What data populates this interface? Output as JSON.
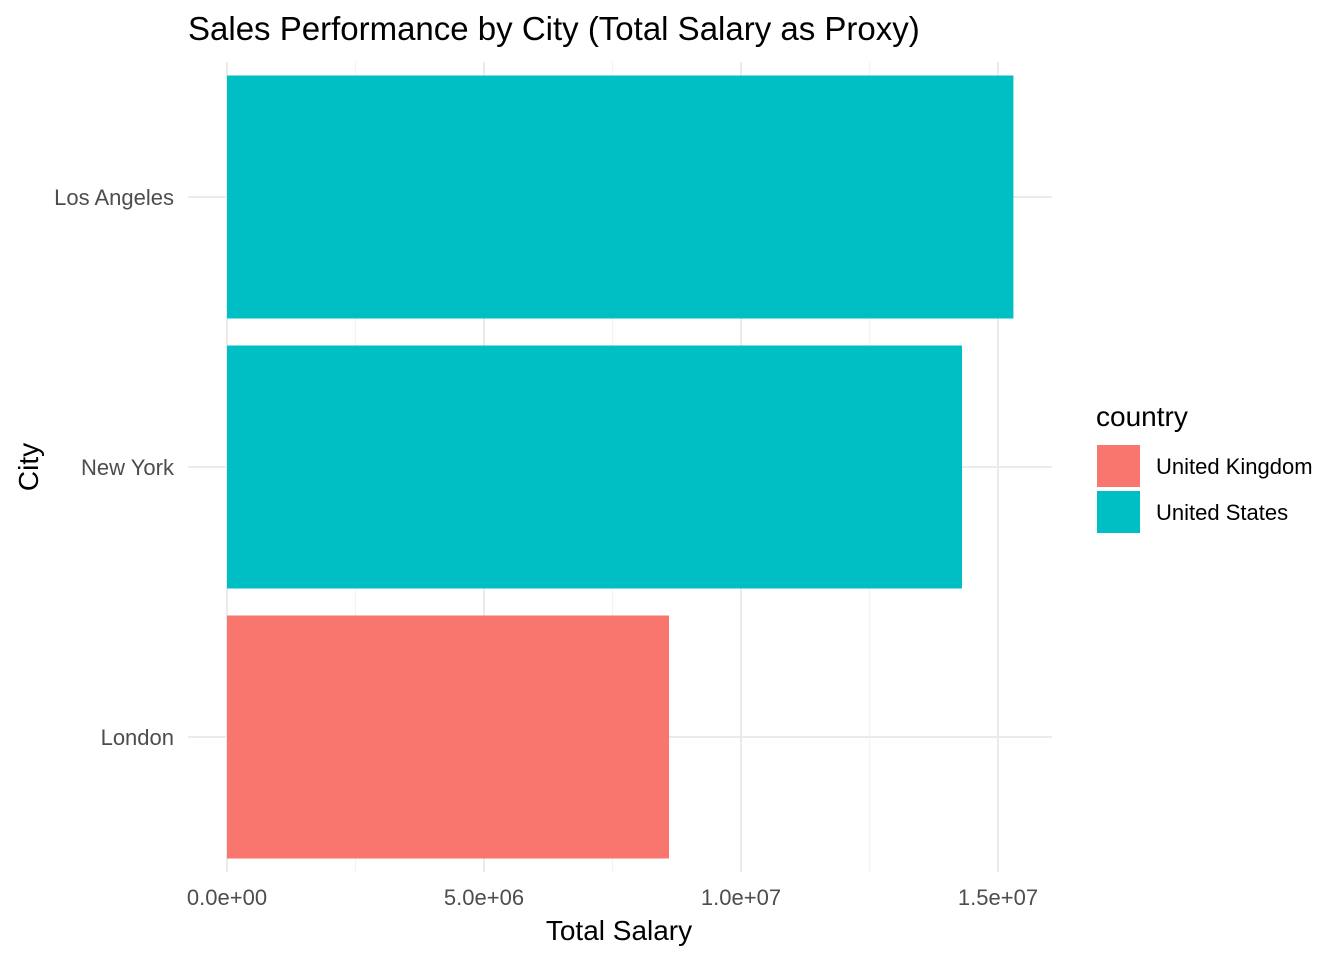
{
  "chart_data": {
    "type": "bar",
    "orientation": "horizontal",
    "title": "Sales Performance by City (Total Salary as Proxy)",
    "xlabel": "Total Salary",
    "ylabel": "City",
    "categories": [
      "London",
      "New York",
      "Los Angeles"
    ],
    "values": [
      8600000,
      14300000,
      15300000
    ],
    "groups": [
      "United Kingdom",
      "United States",
      "United States"
    ],
    "xlim": [
      0,
      16000000
    ],
    "x_ticks": [
      0,
      5000000,
      10000000,
      15000000
    ],
    "x_tick_labels": [
      "0.0e+00",
      "5.0e+06",
      "1.0e+07",
      "1.5e+07"
    ],
    "grid": true,
    "legend": {
      "title": "country",
      "placement": "right",
      "entries": [
        {
          "label": "United Kingdom",
          "color": "#F8766D"
        },
        {
          "label": "United States",
          "color": "#00BFC4"
        }
      ]
    }
  }
}
